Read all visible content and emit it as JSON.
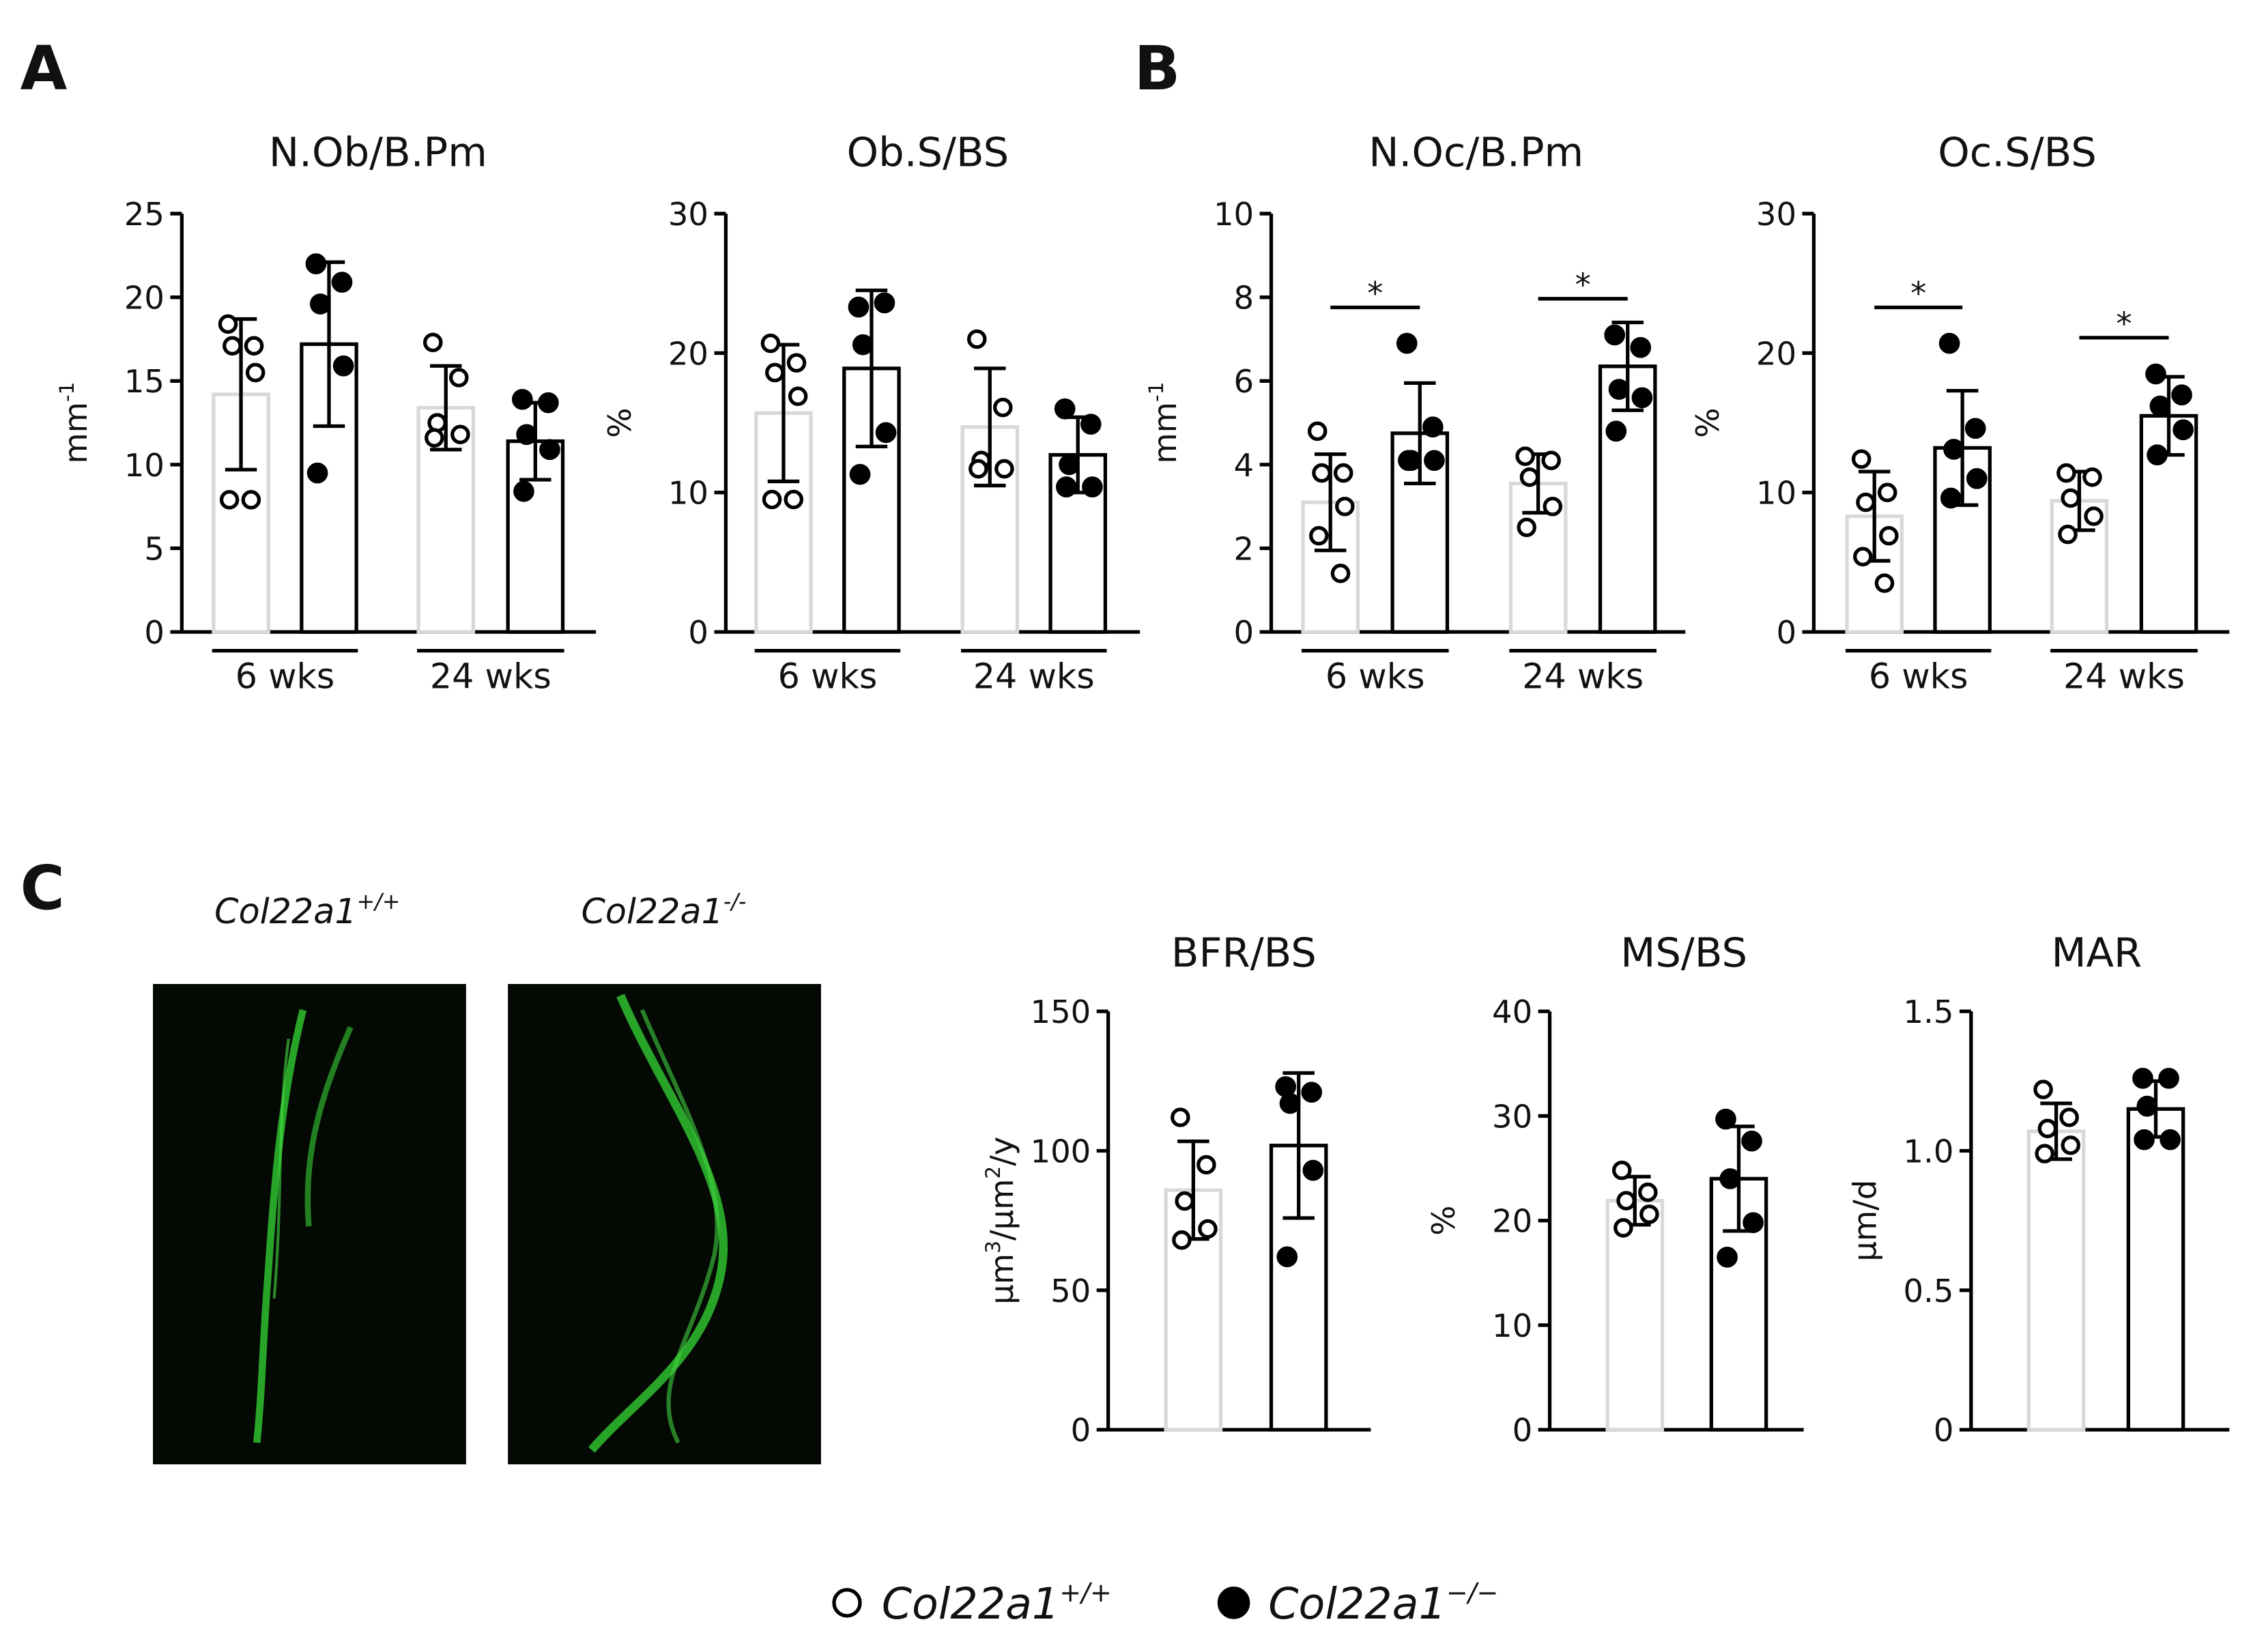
{
  "panels": [
    "A",
    "B",
    "C"
  ],
  "images": [
    {
      "label": "Col22a1",
      "sup": "+/+"
    },
    {
      "label": "Col22a1",
      "sup": "-/-"
    }
  ],
  "legend": [
    {
      "name": "Col22a1",
      "sup": "+/+",
      "marker": "open"
    },
    {
      "name": "Col22a1",
      "sup": "−/−",
      "marker": "filled"
    }
  ],
  "chart_data": [
    {
      "type": "bar",
      "title": "N.Ob/B.Pm",
      "ylabel": [
        "mm",
        "-1"
      ],
      "ylim": [
        0,
        25
      ],
      "yticks": [
        0,
        5,
        10,
        15,
        20,
        25
      ],
      "groups": [
        "6 wks",
        "24 wks"
      ],
      "series": [
        {
          "marker": "open",
          "color": "#d9d9d9",
          "means": [
            14.2,
            13.4
          ],
          "sd": [
            4.5,
            2.5
          ],
          "points": [
            [
              18.4,
              17.1,
              17.1,
              15.5,
              7.9,
              7.9
            ],
            [
              17.3,
              15.2,
              12.5,
              11.8,
              11.6
            ]
          ]
        },
        {
          "marker": "filled",
          "color": "#000000",
          "means": [
            17.2,
            11.4
          ],
          "sd": [
            4.9,
            2.3
          ],
          "points": [
            [
              22.0,
              20.9,
              19.6,
              15.9,
              9.5
            ],
            [
              13.9,
              13.7,
              11.8,
              10.9,
              8.4
            ]
          ]
        }
      ]
    },
    {
      "type": "bar",
      "title": "Ob.S/BS",
      "ylabel": [
        "%"
      ],
      "ylim": [
        0,
        30
      ],
      "yticks": [
        0,
        10,
        20,
        30
      ],
      "groups": [
        "6 wks",
        "24 wks"
      ],
      "series": [
        {
          "marker": "open",
          "color": "#d9d9d9",
          "means": [
            15.7,
            14.7
          ],
          "sd": [
            4.9,
            4.2
          ],
          "points": [
            [
              20.7,
              19.3,
              18.6,
              16.9,
              9.5,
              9.5
            ],
            [
              21.0,
              16.1,
              12.3,
              11.7,
              11.7
            ]
          ]
        },
        {
          "marker": "filled",
          "color": "#000000",
          "means": [
            18.9,
            12.7
          ],
          "sd": [
            5.6,
            2.7
          ],
          "points": [
            [
              23.3,
              23.6,
              20.6,
              14.3,
              11.3
            ],
            [
              16.0,
              14.9,
              12.0,
              10.4,
              10.4
            ]
          ]
        }
      ]
    },
    {
      "type": "bar",
      "title": "N.Oc/B.Pm",
      "ylabel": [
        "mm",
        "-1"
      ],
      "ylim": [
        0,
        10
      ],
      "yticks": [
        0,
        2,
        4,
        6,
        8,
        10
      ],
      "groups": [
        "6 wks",
        "24 wks"
      ],
      "significance": [
        "*",
        "*"
      ],
      "series": [
        {
          "marker": "open",
          "color": "#d9d9d9",
          "means": [
            3.1,
            3.55
          ],
          "sd": [
            1.15,
            0.7
          ],
          "points": [
            [
              4.8,
              3.8,
              3.8,
              3.0,
              2.3,
              1.4
            ],
            [
              4.2,
              4.1,
              3.7,
              3.0,
              2.5
            ]
          ]
        },
        {
          "marker": "filled",
          "color": "#000000",
          "means": [
            4.75,
            6.35
          ],
          "sd": [
            1.2,
            1.05
          ],
          "points": [
            [
              6.9,
              4.9,
              4.1,
              4.1,
              4.1
            ],
            [
              7.1,
              6.8,
              5.8,
              5.6,
              4.8
            ]
          ]
        }
      ]
    },
    {
      "type": "bar",
      "title": "Oc.S/BS",
      "ylabel": [
        "%"
      ],
      "ylim": [
        0,
        30
      ],
      "yticks": [
        0,
        10,
        20,
        30
      ],
      "groups": [
        "6 wks",
        "24 wks"
      ],
      "significance": [
        "*",
        "*"
      ],
      "series": [
        {
          "marker": "open",
          "color": "#d9d9d9",
          "means": [
            8.3,
            9.4
          ],
          "sd": [
            3.2,
            2.1
          ],
          "points": [
            [
              12.4,
              10.0,
              9.3,
              6.9,
              5.4,
              3.5
            ],
            [
              11.4,
              11.1,
              9.6,
              8.3,
              7.0
            ]
          ]
        },
        {
          "marker": "filled",
          "color": "#000000",
          "means": [
            13.2,
            15.5
          ],
          "sd": [
            4.1,
            2.8
          ],
          "points": [
            [
              20.7,
              14.6,
              13.1,
              11.0,
              9.6
            ],
            [
              18.5,
              17.0,
              16.2,
              14.5,
              12.7
            ]
          ]
        }
      ]
    },
    {
      "type": "bar",
      "title": "BFR/BS",
      "ylabel": [
        "µm",
        "3",
        "/µm",
        "2",
        "/y"
      ],
      "ylim": [
        0,
        150
      ],
      "yticks": [
        0,
        50,
        100,
        150
      ],
      "series": [
        {
          "marker": "open",
          "color": "#d9d9d9",
          "means": [
            85.9
          ],
          "sd": [
            17.5
          ],
          "points": [
            [
              112,
              95,
              82,
              72,
              68
            ]
          ]
        },
        {
          "marker": "filled",
          "color": "#000000",
          "means": [
            101.9
          ],
          "sd": [
            26
          ],
          "points": [
            [
              123,
              121,
              117,
              93,
              62
            ]
          ]
        }
      ]
    },
    {
      "type": "bar",
      "title": "MS/BS",
      "ylabel": [
        "%"
      ],
      "ylim": [
        0,
        40
      ],
      "yticks": [
        0,
        10,
        20,
        30,
        40
      ],
      "series": [
        {
          "marker": "open",
          "color": "#d9d9d9",
          "means": [
            21.9
          ],
          "sd": [
            2.3
          ],
          "points": [
            [
              24.8,
              22.7,
              21.9,
              20.6,
              19.3
            ]
          ]
        },
        {
          "marker": "filled",
          "color": "#000000",
          "means": [
            24.0
          ],
          "sd": [
            5.0
          ],
          "points": [
            [
              29.7,
              27.6,
              24.0,
              19.8,
              16.5
            ]
          ]
        }
      ]
    },
    {
      "type": "bar",
      "title": "MAR",
      "ylabel": [
        "µm/d"
      ],
      "ylim": [
        0,
        1.5
      ],
      "yticks": [
        0,
        0.5,
        {
          "value": 1,
          "label": "1.0"
        },
        1.5
      ],
      "series": [
        {
          "marker": "open",
          "color": "#d9d9d9",
          "means": [
            1.07
          ],
          "sd": [
            0.1
          ],
          "points": [
            [
              1.22,
              1.12,
              1.08,
              1.02,
              0.99
            ]
          ]
        },
        {
          "marker": "filled",
          "color": "#000000",
          "means": [
            1.15
          ],
          "sd": [
            0.1
          ],
          "points": [
            [
              1.26,
              1.26,
              1.16,
              1.04,
              1.04
            ]
          ]
        }
      ]
    }
  ]
}
